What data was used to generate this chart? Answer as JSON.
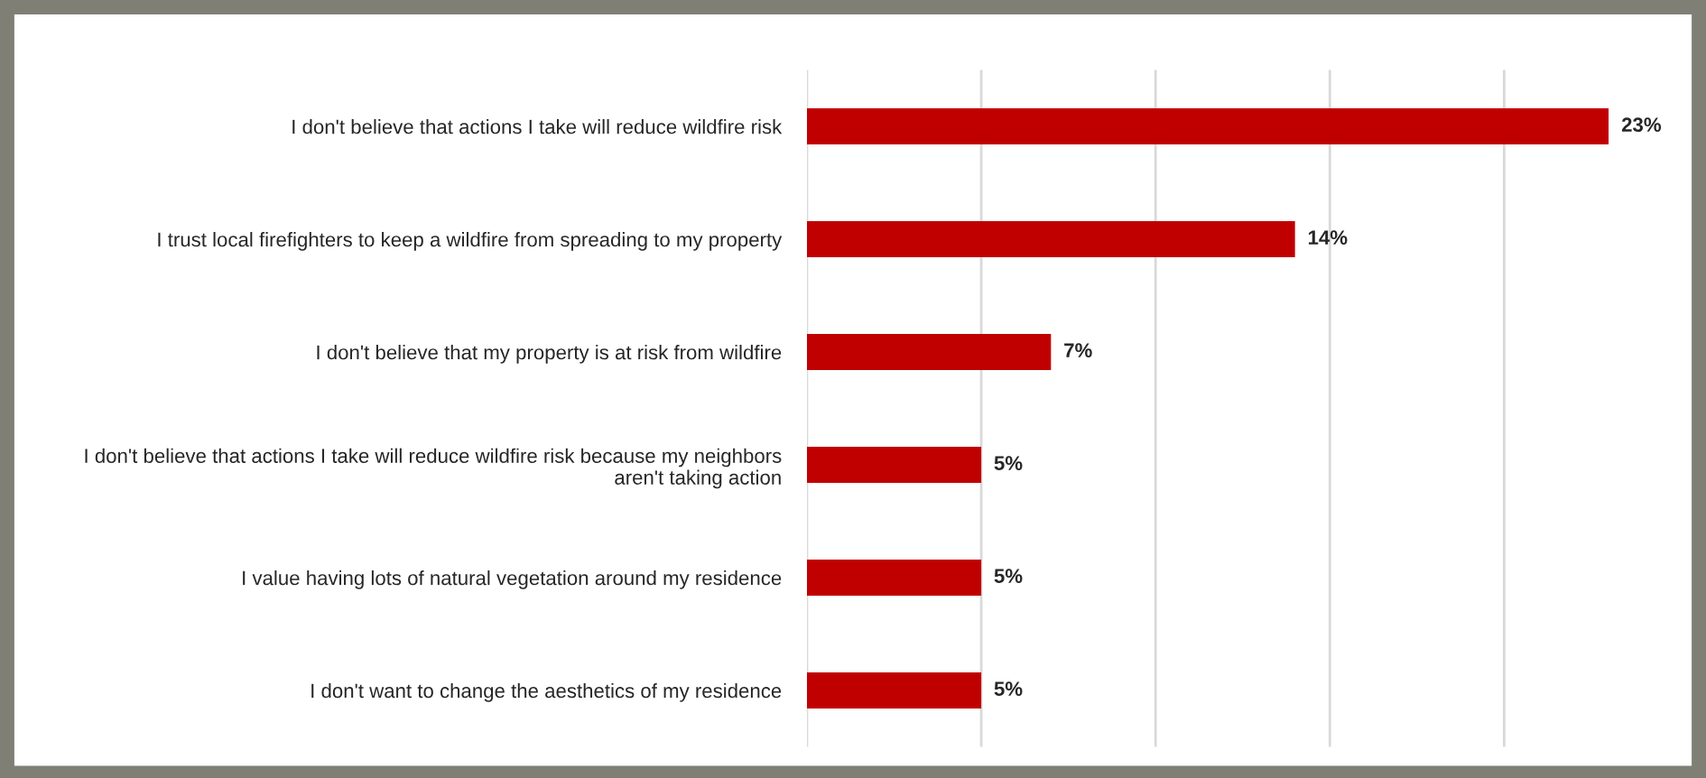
{
  "chart_data": {
    "type": "bar",
    "orientation": "horizontal",
    "categories": [
      "I don't believe that actions I take will reduce wildfire risk",
      "I trust local firefighters to keep a wildfire from spreading to my property",
      "I don't believe that my property is at risk from wildfire",
      "I don't believe that actions I take will reduce wildfire risk because my neighbors\naren't taking action",
      "I value having lots of natural vegetation around my residence",
      "I don't want to change the aesthetics of my residence"
    ],
    "values": [
      23,
      14,
      7,
      5,
      5,
      5
    ],
    "value_labels": [
      "23%",
      "14%",
      "7%",
      "5%",
      "5%",
      "5%"
    ],
    "color": "#c00000",
    "xticks": [
      {
        "value": 0,
        "label": null
      },
      {
        "value": 5,
        "label": null
      },
      {
        "value": 10,
        "label": null
      },
      {
        "value": 15,
        "label": null
      },
      {
        "value": 20,
        "label": null
      }
    ],
    "tick_labels": "y",
    "grid": "x"
  }
}
